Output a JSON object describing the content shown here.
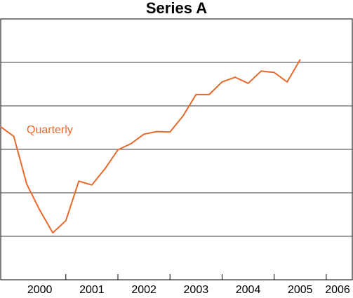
{
  "chart_data": {
    "type": "line",
    "title": "Series A",
    "xlabel": "",
    "ylabel": "",
    "x_tick_labels": [
      "2000",
      "2001",
      "2002",
      "2003",
      "2004",
      "2005",
      "2006"
    ],
    "xlim": [
      1999.75,
      2006.5
    ],
    "ylim": [
      0,
      6
    ],
    "y_tick_labels_shown": false,
    "grid": "horizontal",
    "legend": "none",
    "series": [
      {
        "name": "Quarterly",
        "color": "#e8692c",
        "label_position": "upper-left",
        "points": [
          {
            "x": 1999.75,
            "y": 3.52
          },
          {
            "x": 2000.0,
            "y": 3.3
          },
          {
            "x": 2000.25,
            "y": 2.2
          },
          {
            "x": 2000.5,
            "y": 1.6
          },
          {
            "x": 2000.75,
            "y": 1.08
          },
          {
            "x": 2001.0,
            "y": 1.36
          },
          {
            "x": 2001.25,
            "y": 2.27
          },
          {
            "x": 2001.5,
            "y": 2.18
          },
          {
            "x": 2001.75,
            "y": 2.55
          },
          {
            "x": 2002.0,
            "y": 2.99
          },
          {
            "x": 2002.25,
            "y": 3.13
          },
          {
            "x": 2002.5,
            "y": 3.35
          },
          {
            "x": 2002.75,
            "y": 3.41
          },
          {
            "x": 2003.0,
            "y": 3.4
          },
          {
            "x": 2003.25,
            "y": 3.77
          },
          {
            "x": 2003.5,
            "y": 4.26
          },
          {
            "x": 2003.75,
            "y": 4.26
          },
          {
            "x": 2004.0,
            "y": 4.55
          },
          {
            "x": 2004.25,
            "y": 4.66
          },
          {
            "x": 2004.5,
            "y": 4.52
          },
          {
            "x": 2004.75,
            "y": 4.8
          },
          {
            "x": 2005.0,
            "y": 4.77
          },
          {
            "x": 2005.25,
            "y": 4.55
          },
          {
            "x": 2005.5,
            "y": 5.07
          }
        ]
      }
    ]
  }
}
